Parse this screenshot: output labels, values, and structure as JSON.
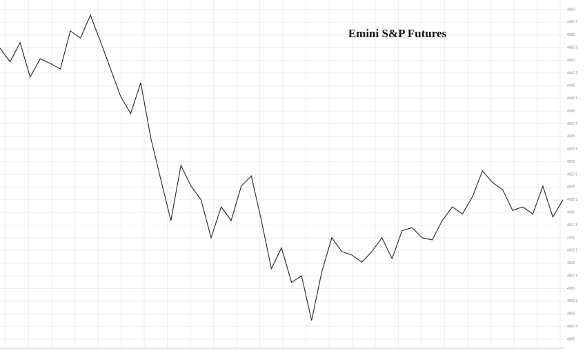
{
  "chart_data": {
    "type": "line",
    "title": "Emini S&P Futures",
    "series": [
      {
        "name": "Emini S&P Futures",
        "color": "#3a3030",
        "values": [
          4952.4,
          4949.7,
          4953.5,
          4946.7,
          4950.3,
          4949.4,
          4948.3,
          4955.8,
          4954.4,
          4958.9,
          4953.7,
          4948.3,
          4942.9,
          4939.5,
          4945.6,
          4934.7,
          4926.5,
          4918.4,
          4929.3,
          4925.2,
          4922.5,
          4915.0,
          4921.1,
          4918.4,
          4925.2,
          4927.2,
          4918.4,
          4908.9,
          4913.0,
          4906.2,
          4907.5,
          4898.7,
          4908.2,
          4915.0,
          4912.3,
          4911.6,
          4910.2,
          4912.3,
          4915.0,
          4910.9,
          4916.4,
          4917.0,
          4915.0,
          4914.6,
          4918.4,
          4921.1,
          4919.7,
          4923.1,
          4928.2,
          4925.9,
          4924.5,
          4920.4,
          4921.1,
          4919.7,
          4925.2,
          4919.1,
          4922.5
        ]
      }
    ],
    "ylim": [
      4895,
      4960
    ],
    "yticks": [
      4960,
      4957.5,
      4955,
      4952.5,
      4950,
      4947.5,
      4945,
      4942.5,
      4940,
      4937.5,
      4935,
      4932.5,
      4930,
      4927.5,
      4925,
      4922.5,
      4920,
      4917.5,
      4915,
      4912.5,
      4910,
      4907.5,
      4905,
      4902.5,
      4900,
      4897.5,
      4895
    ],
    "grid": true
  }
}
